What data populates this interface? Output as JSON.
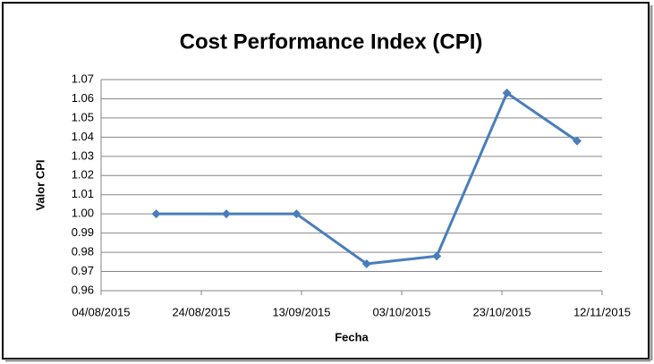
{
  "chart_data": {
    "type": "line",
    "title": "Cost Performance Index (CPI)",
    "x_label": "Fecha",
    "y_label": "Valor CPI",
    "x": [
      "2015-08-15",
      "2015-08-29",
      "2015-09-12",
      "2015-09-26",
      "2015-10-10",
      "2015-10-24",
      "2015-11-07"
    ],
    "series": [
      {
        "name": "CPI",
        "color": "#4a7ebb",
        "values": [
          1.0,
          1.0,
          1.0,
          0.974,
          0.978,
          1.063,
          1.038
        ]
      }
    ],
    "xlim": [
      "2015-08-04",
      "2015-11-12"
    ],
    "xticks": [
      {
        "value": "2015-08-04",
        "label": "04/08/2015"
      },
      {
        "value": "2015-08-24",
        "label": "24/08/2015"
      },
      {
        "value": "2015-09-13",
        "label": "13/09/2015"
      },
      {
        "value": "2015-10-03",
        "label": "03/10/2015"
      },
      {
        "value": "2015-10-23",
        "label": "23/10/2015"
      },
      {
        "value": "2015-11-12",
        "label": "12/11/2015"
      }
    ],
    "ylim": [
      0.96,
      1.07
    ],
    "yticks": [
      0.96,
      0.97,
      0.98,
      0.99,
      {
        "value": 1.0,
        "label": "1.00"
      },
      1.01,
      1.02,
      1.03,
      1.04,
      1.05,
      1.06,
      1.07
    ],
    "grid": true
  }
}
